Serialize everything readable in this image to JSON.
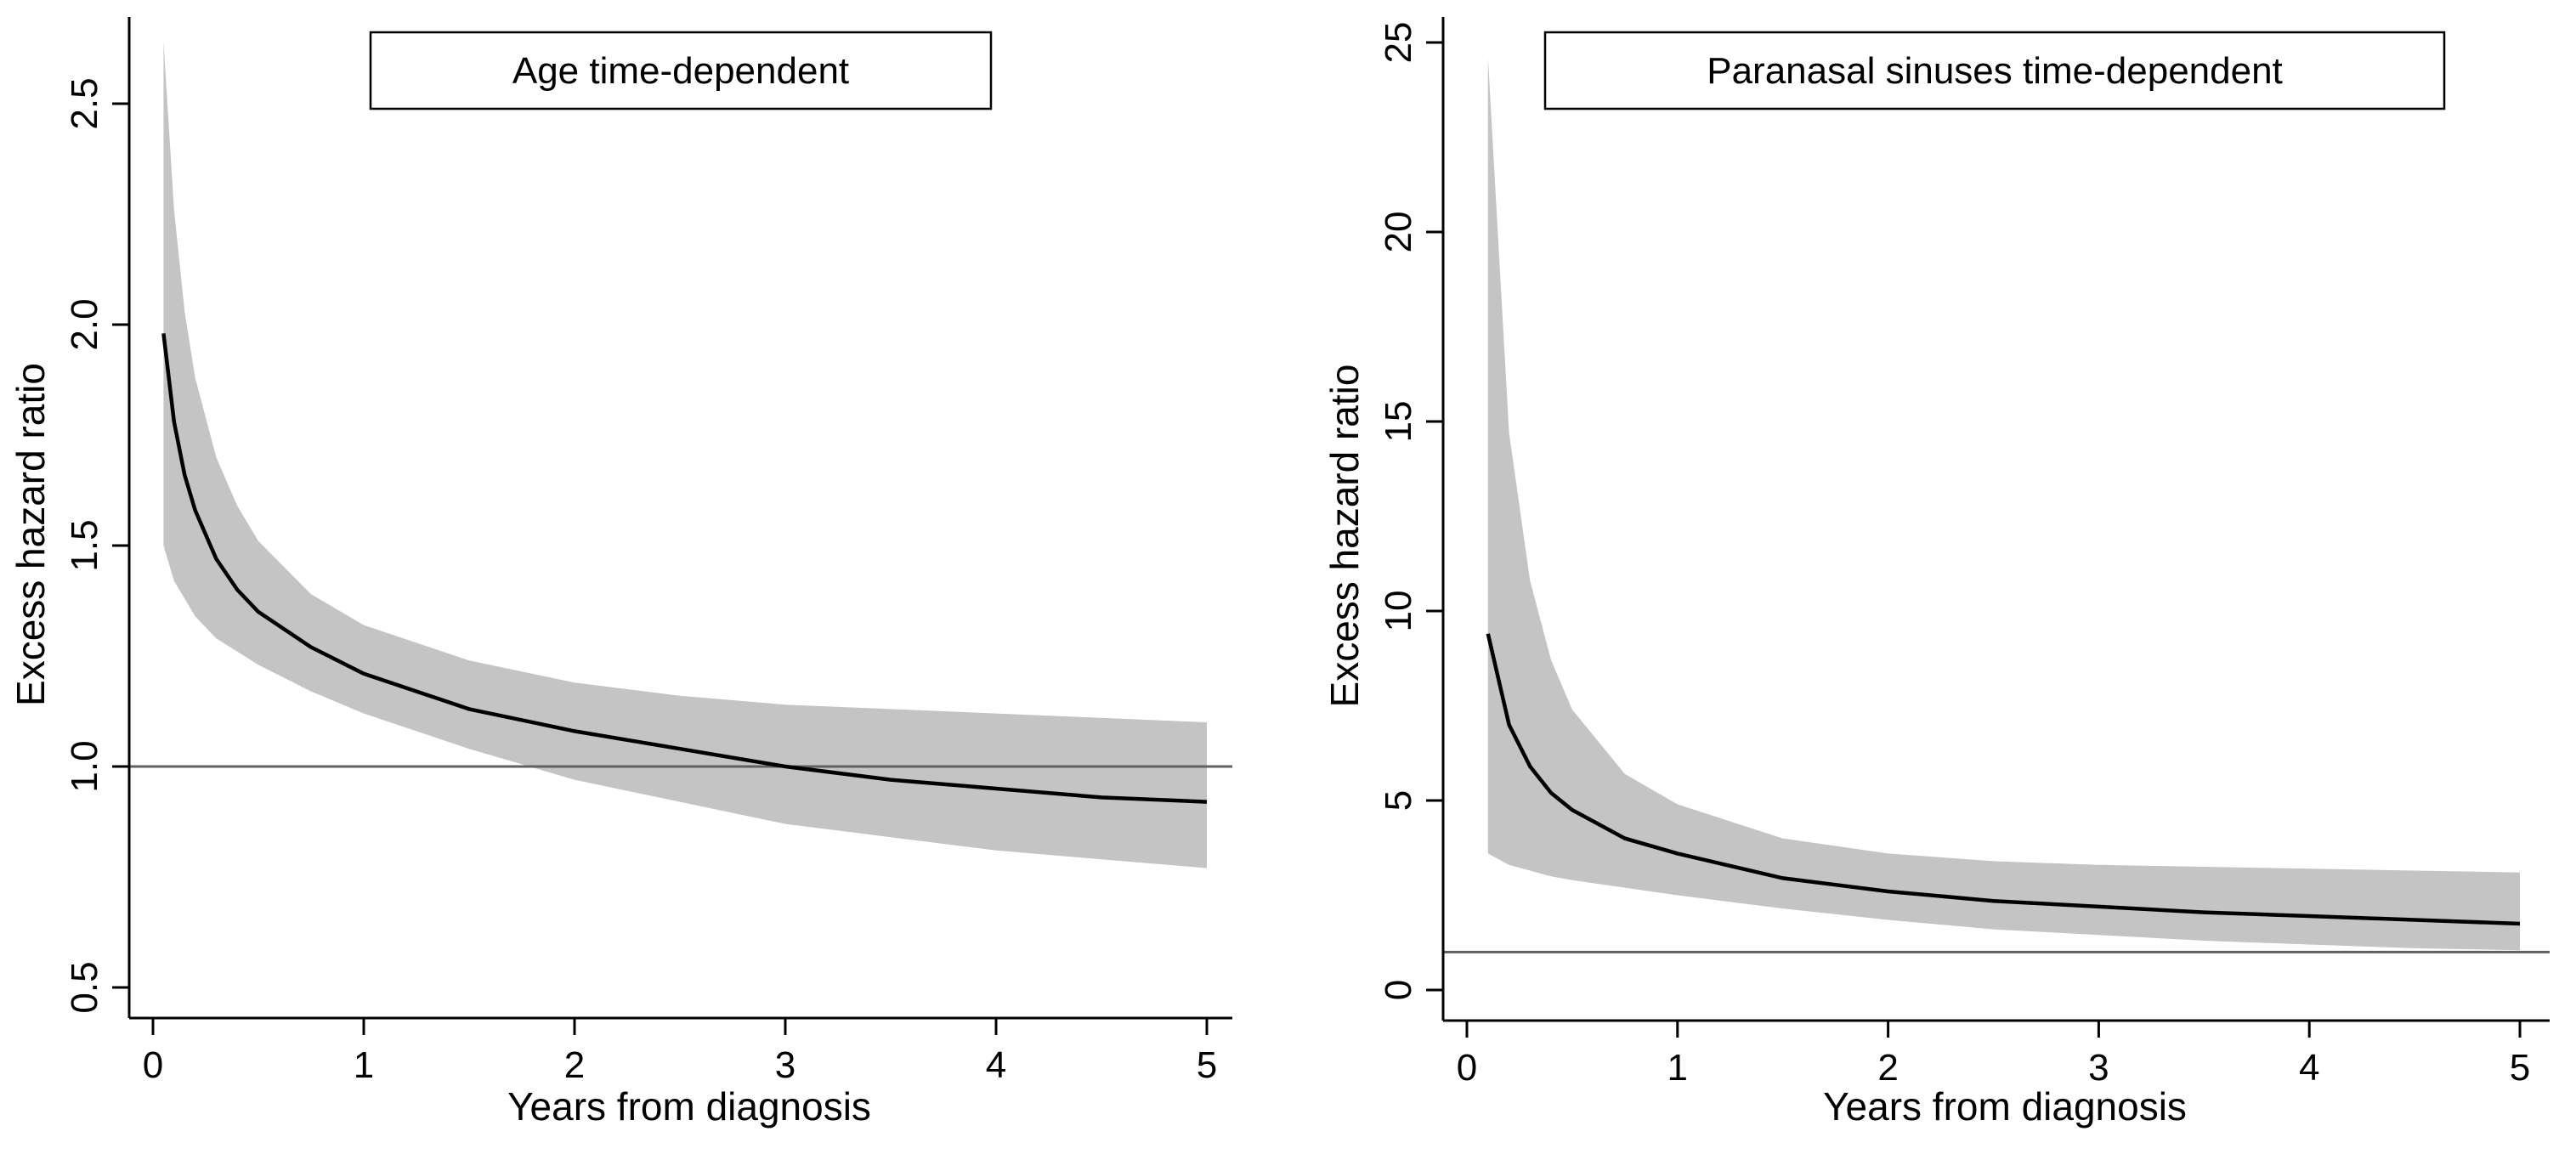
{
  "chart_data": [
    {
      "type": "line",
      "title": "Age time-dependent",
      "xlabel": "Years from diagnosis",
      "ylabel": "Excess hazard ratio",
      "xlim": [
        0,
        5
      ],
      "ylim": [
        0.5,
        2.5
      ],
      "x_ticks": [
        0,
        1,
        2,
        3,
        4,
        5
      ],
      "x_tick_labels": [
        "0",
        "1",
        "2",
        "3",
        "4",
        "5"
      ],
      "y_ticks": [
        0.5,
        1.0,
        1.5,
        2.0,
        2.5
      ],
      "y_tick_labels": [
        "0.5",
        "1.0",
        "1.5",
        "2.0",
        "2.5"
      ],
      "reference_line": 1.0,
      "grid": false,
      "legend": "top-center",
      "x": [
        0.05,
        0.1,
        0.15,
        0.2,
        0.3,
        0.4,
        0.5,
        0.75,
        1,
        1.5,
        2,
        2.5,
        3,
        3.5,
        4,
        4.5,
        5
      ],
      "series": [
        {
          "values": [
            1.98,
            1.78,
            1.66,
            1.58,
            1.47,
            1.4,
            1.35,
            1.27,
            1.21,
            1.13,
            1.08,
            1.04,
            1.0,
            0.97,
            0.95,
            0.93,
            0.92
          ]
        }
      ],
      "ci_lower": [
        1.5,
        1.42,
        1.38,
        1.34,
        1.29,
        1.26,
        1.23,
        1.17,
        1.12,
        1.04,
        0.97,
        0.92,
        0.87,
        0.84,
        0.81,
        0.79,
        0.77
      ],
      "ci_upper": [
        2.64,
        2.26,
        2.03,
        1.88,
        1.7,
        1.59,
        1.51,
        1.39,
        1.32,
        1.24,
        1.19,
        1.16,
        1.14,
        1.13,
        1.12,
        1.11,
        1.1
      ],
      "colors": {
        "line": "#000000",
        "band": "#c4c4c4",
        "reference": "#606060"
      }
    },
    {
      "type": "line",
      "title": "Paranasal sinuses time-dependent",
      "xlabel": "Years from diagnosis",
      "ylabel": "Excess hazard ratio",
      "xlim": [
        0,
        5
      ],
      "ylim": [
        0,
        25
      ],
      "x_ticks": [
        0,
        1,
        2,
        3,
        4,
        5
      ],
      "x_tick_labels": [
        "0",
        "1",
        "2",
        "3",
        "4",
        "5"
      ],
      "y_ticks": [
        0,
        5,
        10,
        15,
        20,
        25
      ],
      "y_tick_labels": [
        "0",
        "5",
        "10",
        "15",
        "20",
        "25"
      ],
      "reference_line": 1,
      "grid": false,
      "legend": "top-center",
      "x": [
        0.1,
        0.2,
        0.3,
        0.4,
        0.5,
        0.75,
        1,
        1.5,
        2,
        2.5,
        3,
        3.5,
        4,
        4.5,
        5
      ],
      "series": [
        {
          "values": [
            9.4,
            7.0,
            5.9,
            5.2,
            4.75,
            4.0,
            3.6,
            2.95,
            2.6,
            2.35,
            2.2,
            2.05,
            1.95,
            1.85,
            1.75
          ]
        }
      ],
      "ci_lower": [
        3.6,
        3.3,
        3.15,
        3.0,
        2.9,
        2.7,
        2.5,
        2.15,
        1.85,
        1.6,
        1.45,
        1.3,
        1.2,
        1.1,
        1.05
      ],
      "ci_upper": [
        24.6,
        14.7,
        10.8,
        8.7,
        7.4,
        5.7,
        4.9,
        4.0,
        3.6,
        3.4,
        3.3,
        3.25,
        3.2,
        3.15,
        3.1
      ],
      "colors": {
        "line": "#000000",
        "band": "#c4c4c4",
        "reference": "#606060"
      }
    }
  ]
}
